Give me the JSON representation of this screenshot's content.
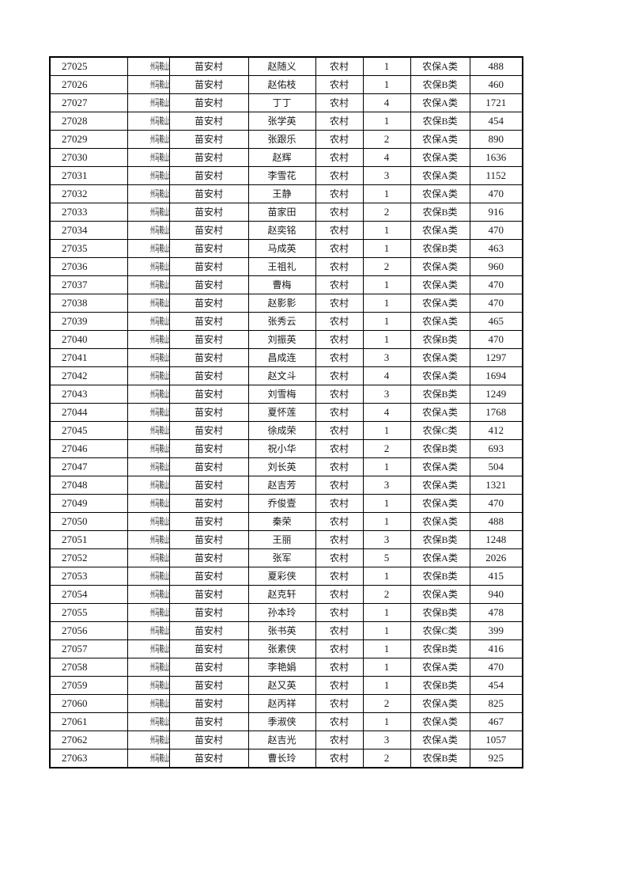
{
  "page": {
    "background_color": "#ffffff",
    "text_color": "#191919",
    "border_color": "#000000"
  },
  "table": {
    "columns": [
      "id",
      "park",
      "village",
      "name",
      "residence",
      "count",
      "category",
      "amount"
    ],
    "rows": [
      [
        "27025",
        "州马鞍山现代产业园",
        "苗安村",
        "赵随义",
        "农村",
        "1",
        "农保A类",
        "488"
      ],
      [
        "27026",
        "州马鞍山现代产业园",
        "苗安村",
        "赵佑枝",
        "农村",
        "1",
        "农保B类",
        "460"
      ],
      [
        "27027",
        "州马鞍山现代产业园",
        "苗安村",
        "丁丁",
        "农村",
        "4",
        "农保A类",
        "1721"
      ],
      [
        "27028",
        "州马鞍山现代产业园",
        "苗安村",
        "张学英",
        "农村",
        "1",
        "农保B类",
        "454"
      ],
      [
        "27029",
        "州马鞍山现代产业园",
        "苗安村",
        "张跟乐",
        "农村",
        "2",
        "农保A类",
        "890"
      ],
      [
        "27030",
        "州马鞍山现代产业园",
        "苗安村",
        "赵辉",
        "农村",
        "4",
        "农保A类",
        "1636"
      ],
      [
        "27031",
        "州马鞍山现代产业园",
        "苗安村",
        "李雪花",
        "农村",
        "3",
        "农保A类",
        "1152"
      ],
      [
        "27032",
        "州马鞍山现代产业园",
        "苗安村",
        "王静",
        "农村",
        "1",
        "农保A类",
        "470"
      ],
      [
        "27033",
        "州马鞍山现代产业园",
        "苗安村",
        "苗家田",
        "农村",
        "2",
        "农保B类",
        "916"
      ],
      [
        "27034",
        "州马鞍山现代产业园",
        "苗安村",
        "赵奕铭",
        "农村",
        "1",
        "农保A类",
        "470"
      ],
      [
        "27035",
        "州马鞍山现代产业园",
        "苗安村",
        "马成英",
        "农村",
        "1",
        "农保B类",
        "463"
      ],
      [
        "27036",
        "州马鞍山现代产业园",
        "苗安村",
        "王祖礼",
        "农村",
        "2",
        "农保A类",
        "960"
      ],
      [
        "27037",
        "州马鞍山现代产业园",
        "苗安村",
        "曹梅",
        "农村",
        "1",
        "农保A类",
        "470"
      ],
      [
        "27038",
        "州马鞍山现代产业园",
        "苗安村",
        "赵影影",
        "农村",
        "1",
        "农保A类",
        "470"
      ],
      [
        "27039",
        "州马鞍山现代产业园",
        "苗安村",
        "张秀云",
        "农村",
        "1",
        "农保A类",
        "465"
      ],
      [
        "27040",
        "州马鞍山现代产业园",
        "苗安村",
        "刘振英",
        "农村",
        "1",
        "农保B类",
        "470"
      ],
      [
        "27041",
        "州马鞍山现代产业园",
        "苗安村",
        "昌成连",
        "农村",
        "3",
        "农保A类",
        "1297"
      ],
      [
        "27042",
        "州马鞍山现代产业园",
        "苗安村",
        "赵文斗",
        "农村",
        "4",
        "农保A类",
        "1694"
      ],
      [
        "27043",
        "州马鞍山现代产业园",
        "苗安村",
        "刘雪梅",
        "农村",
        "3",
        "农保B类",
        "1249"
      ],
      [
        "27044",
        "州马鞍山现代产业园",
        "苗安村",
        "夏怀莲",
        "农村",
        "4",
        "农保A类",
        "1768"
      ],
      [
        "27045",
        "州马鞍山现代产业园",
        "苗安村",
        "徐成荣",
        "农村",
        "1",
        "农保C类",
        "412"
      ],
      [
        "27046",
        "州马鞍山现代产业园",
        "苗安村",
        "祝小华",
        "农村",
        "2",
        "农保B类",
        "693"
      ],
      [
        "27047",
        "州马鞍山现代产业园",
        "苗安村",
        "刘长英",
        "农村",
        "1",
        "农保A类",
        "504"
      ],
      [
        "27048",
        "州马鞍山现代产业园",
        "苗安村",
        "赵吉芳",
        "农村",
        "3",
        "农保A类",
        "1321"
      ],
      [
        "27049",
        "州马鞍山现代产业园",
        "苗安村",
        "乔俊壹",
        "农村",
        "1",
        "农保A类",
        "470"
      ],
      [
        "27050",
        "州马鞍山现代产业园",
        "苗安村",
        "秦荣",
        "农村",
        "1",
        "农保A类",
        "488"
      ],
      [
        "27051",
        "州马鞍山现代产业园",
        "苗安村",
        "王丽",
        "农村",
        "3",
        "农保B类",
        "1248"
      ],
      [
        "27052",
        "州马鞍山现代产业园",
        "苗安村",
        "张军",
        "农村",
        "5",
        "农保A类",
        "2026"
      ],
      [
        "27053",
        "州马鞍山现代产业园",
        "苗安村",
        "夏彩侠",
        "农村",
        "1",
        "农保B类",
        "415"
      ],
      [
        "27054",
        "州马鞍山现代产业园",
        "苗安村",
        "赵克轩",
        "农村",
        "2",
        "农保A类",
        "940"
      ],
      [
        "27055",
        "州马鞍山现代产业园",
        "苗安村",
        "孙本玲",
        "农村",
        "1",
        "农保B类",
        "478"
      ],
      [
        "27056",
        "州马鞍山现代产业园",
        "苗安村",
        "张书英",
        "农村",
        "1",
        "农保C类",
        "399"
      ],
      [
        "27057",
        "州马鞍山现代产业园",
        "苗安村",
        "张素侠",
        "农村",
        "1",
        "农保B类",
        "416"
      ],
      [
        "27058",
        "州马鞍山现代产业园",
        "苗安村",
        "李艳娟",
        "农村",
        "1",
        "农保A类",
        "470"
      ],
      [
        "27059",
        "州马鞍山现代产业园",
        "苗安村",
        "赵又英",
        "农村",
        "1",
        "农保B类",
        "454"
      ],
      [
        "27060",
        "州马鞍山现代产业园",
        "苗安村",
        "赵丙祥",
        "农村",
        "2",
        "农保A类",
        "825"
      ],
      [
        "27061",
        "州马鞍山现代产业园",
        "苗安村",
        "季淑侠",
        "农村",
        "1",
        "农保A类",
        "467"
      ],
      [
        "27062",
        "州马鞍山现代产业园",
        "苗安村",
        "赵吉光",
        "农村",
        "3",
        "农保A类",
        "1057"
      ],
      [
        "27063",
        "州马鞍山现代产业园",
        "苗安村",
        "曹长玲",
        "农村",
        "2",
        "农保B类",
        "925"
      ]
    ]
  }
}
